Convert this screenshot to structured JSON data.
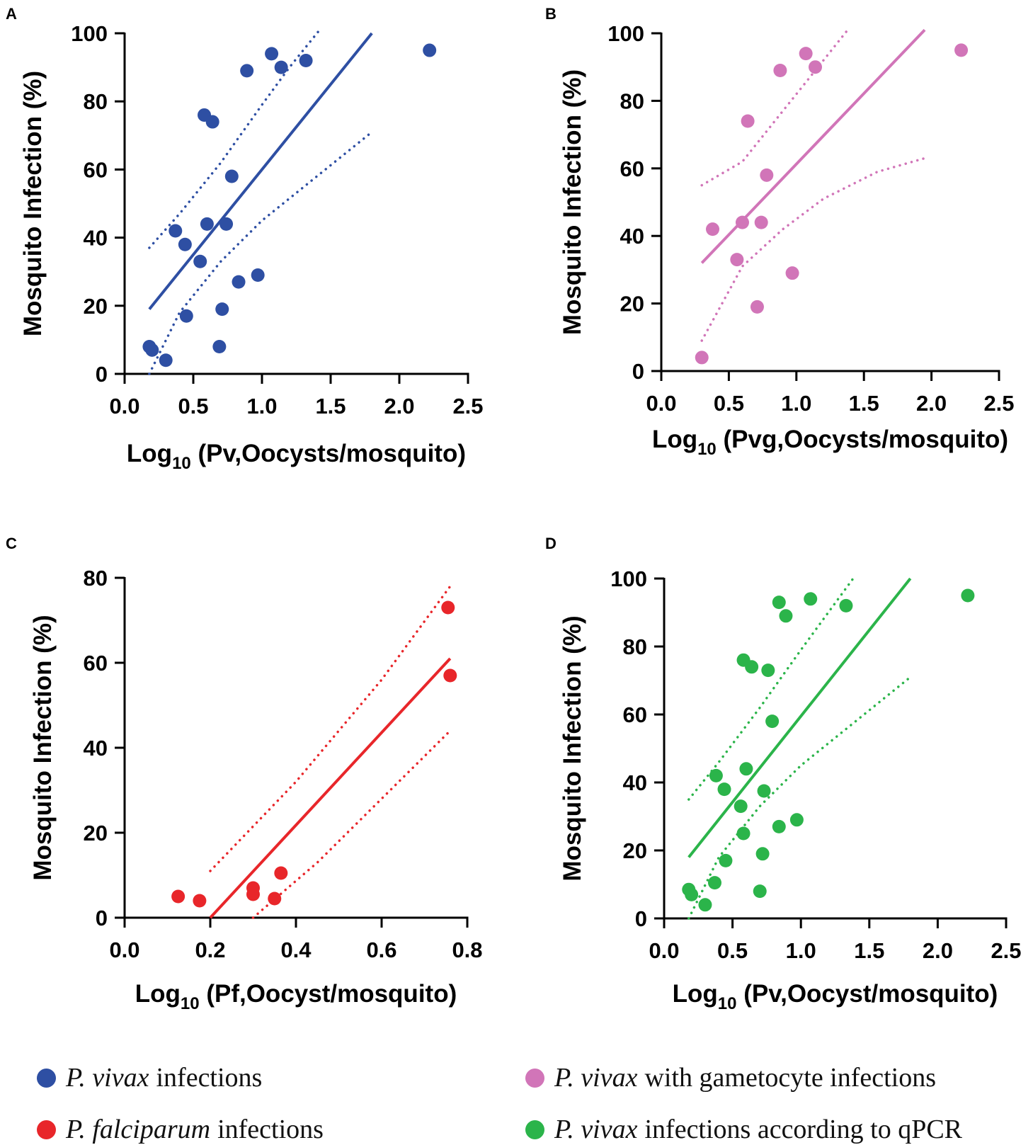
{
  "chart_data": [
    {
      "panel": "A",
      "type": "scatter",
      "color": "#2E4FA3",
      "xlabel": "Log",
      "xlabel_sub": "10",
      "xlabel_rest": " (Pv,Oocysts/mosquito)",
      "ylabel": "Mosquito Infection (%)",
      "xlim": [
        0,
        2.5
      ],
      "ylim": [
        0,
        100
      ],
      "xticks": [
        "0.0",
        "0.5",
        "1.0",
        "1.5",
        "2.0",
        "2.5"
      ],
      "yticks": [
        "0",
        "20",
        "40",
        "60",
        "80",
        "100"
      ],
      "points": [
        [
          0.18,
          8
        ],
        [
          0.2,
          7
        ],
        [
          0.3,
          4
        ],
        [
          0.37,
          42
        ],
        [
          0.44,
          38
        ],
        [
          0.45,
          17
        ],
        [
          0.55,
          33
        ],
        [
          0.58,
          76
        ],
        [
          0.6,
          44
        ],
        [
          0.64,
          74
        ],
        [
          0.69,
          8
        ],
        [
          0.71,
          19
        ],
        [
          0.74,
          44
        ],
        [
          0.78,
          58
        ],
        [
          0.83,
          27
        ],
        [
          0.89,
          89
        ],
        [
          0.97,
          29
        ],
        [
          1.07,
          94
        ],
        [
          1.14,
          90
        ],
        [
          1.32,
          92
        ],
        [
          2.22,
          95
        ]
      ],
      "fit": [
        [
          0.18,
          19
        ],
        [
          1.8,
          100
        ]
      ],
      "ci_upper": [
        [
          0.18,
          37
        ],
        [
          0.4,
          47
        ],
        [
          0.7,
          62
        ],
        [
          1.0,
          79
        ],
        [
          1.2,
          90
        ],
        [
          1.42,
          101
        ]
      ],
      "ci_lower": [
        [
          0.18,
          0
        ],
        [
          0.4,
          18
        ],
        [
          0.7,
          33
        ],
        [
          1.0,
          45
        ],
        [
          1.4,
          58
        ],
        [
          1.8,
          71
        ]
      ]
    },
    {
      "panel": "B",
      "type": "scatter",
      "color": "#D175B8",
      "xlabel": "Log",
      "xlabel_sub": "10",
      "xlabel_rest": " (Pvg,Oocysts/mosquito)",
      "ylabel": "Mosquito Infection (%)",
      "xlim": [
        0,
        2.5
      ],
      "ylim": [
        0,
        100
      ],
      "xticks": [
        "0.0",
        "0.5",
        "1.0",
        "1.5",
        "2.0",
        "2.5"
      ],
      "yticks": [
        "0",
        "20",
        "40",
        "60",
        "80",
        "100"
      ],
      "points": [
        [
          0.3,
          4
        ],
        [
          0.38,
          42
        ],
        [
          0.56,
          33
        ],
        [
          0.6,
          44
        ],
        [
          0.64,
          74
        ],
        [
          0.71,
          19
        ],
        [
          0.74,
          44
        ],
        [
          0.78,
          58
        ],
        [
          0.88,
          89
        ],
        [
          0.97,
          29
        ],
        [
          1.07,
          94
        ],
        [
          1.14,
          90
        ],
        [
          2.22,
          95
        ]
      ],
      "fit": [
        [
          0.3,
          32
        ],
        [
          1.95,
          101
        ]
      ],
      "ci_upper": [
        [
          0.3,
          55
        ],
        [
          0.6,
          62
        ],
        [
          0.9,
          77
        ],
        [
          1.2,
          92
        ],
        [
          1.38,
          101
        ]
      ],
      "ci_lower": [
        [
          0.3,
          9
        ],
        [
          0.6,
          31
        ],
        [
          0.9,
          42
        ],
        [
          1.2,
          51
        ],
        [
          1.6,
          59
        ],
        [
          1.95,
          63
        ]
      ]
    },
    {
      "panel": "C",
      "type": "scatter",
      "color": "#E8262A",
      "xlabel": "Log",
      "xlabel_sub": "10",
      "xlabel_rest": " (Pf,Oocyst/mosquito)",
      "ylabel": "Mosquito Infection (%)",
      "xlim": [
        0,
        0.8
      ],
      "ylim": [
        0,
        80
      ],
      "xticks": [
        "0.0",
        "0.2",
        "0.4",
        "0.6",
        "0.8"
      ],
      "yticks": [
        "0",
        "20",
        "40",
        "60",
        "80"
      ],
      "points": [
        [
          0.125,
          5
        ],
        [
          0.175,
          4
        ],
        [
          0.3,
          7
        ],
        [
          0.3,
          5.5
        ],
        [
          0.35,
          4.5
        ],
        [
          0.365,
          10.5
        ],
        [
          0.755,
          73
        ],
        [
          0.76,
          57
        ]
      ],
      "fit": [
        [
          0.2,
          0
        ],
        [
          0.76,
          61
        ]
      ],
      "ci_upper": [
        [
          0.2,
          11
        ],
        [
          0.4,
          32
        ],
        [
          0.6,
          56
        ],
        [
          0.76,
          78
        ]
      ],
      "ci_lower": [
        [
          0.3,
          0
        ],
        [
          0.45,
          13
        ],
        [
          0.6,
          28
        ],
        [
          0.76,
          44
        ]
      ]
    },
    {
      "panel": "D",
      "type": "scatter",
      "color": "#2BB44A",
      "xlabel": "Log",
      "xlabel_sub": "10",
      "xlabel_rest": " (Pv,Oocyst/mosquito)",
      "ylabel": "Mosquito Infection (%)",
      "xlim": [
        0,
        2.5
      ],
      "ylim": [
        0,
        100
      ],
      "xticks": [
        "0.0",
        "0.5",
        "1.0",
        "1.5",
        "2.0",
        "2.5"
      ],
      "yticks": [
        "0",
        "20",
        "40",
        "60",
        "80",
        "100"
      ],
      "points": [
        [
          0.18,
          8.5
        ],
        [
          0.2,
          7
        ],
        [
          0.3,
          4
        ],
        [
          0.37,
          10.5
        ],
        [
          0.38,
          42
        ],
        [
          0.44,
          38
        ],
        [
          0.45,
          17
        ],
        [
          0.56,
          33
        ],
        [
          0.58,
          76
        ],
        [
          0.58,
          25
        ],
        [
          0.6,
          44
        ],
        [
          0.64,
          74
        ],
        [
          0.7,
          8
        ],
        [
          0.72,
          19
        ],
        [
          0.73,
          37.5
        ],
        [
          0.76,
          73
        ],
        [
          0.79,
          58
        ],
        [
          0.84,
          27
        ],
        [
          0.84,
          93
        ],
        [
          0.89,
          89
        ],
        [
          0.97,
          29
        ],
        [
          1.07,
          94
        ],
        [
          1.33,
          92
        ],
        [
          2.22,
          95
        ]
      ],
      "fit": [
        [
          0.18,
          18
        ],
        [
          1.8,
          100
        ]
      ],
      "ci_upper": [
        [
          0.18,
          35
        ],
        [
          0.4,
          46
        ],
        [
          0.7,
          62
        ],
        [
          1.0,
          79
        ],
        [
          1.2,
          90
        ],
        [
          1.4,
          101
        ]
      ],
      "ci_lower": [
        [
          0.18,
          0
        ],
        [
          0.4,
          18
        ],
        [
          0.7,
          33
        ],
        [
          1.0,
          45
        ],
        [
          1.4,
          58
        ],
        [
          1.8,
          71
        ]
      ]
    }
  ],
  "legend": [
    {
      "italic": "P. vivax",
      "text": "infections",
      "color": "#2E4FA3"
    },
    {
      "italic": "P. vivax",
      "text": "with gametocyte infections",
      "color": "#D175B8"
    },
    {
      "italic": "P. falciparum",
      "text": "infections",
      "color": "#E8262A"
    },
    {
      "italic": "P. vivax",
      "text": "infections according to qPCR",
      "color": "#2BB44A"
    }
  ]
}
